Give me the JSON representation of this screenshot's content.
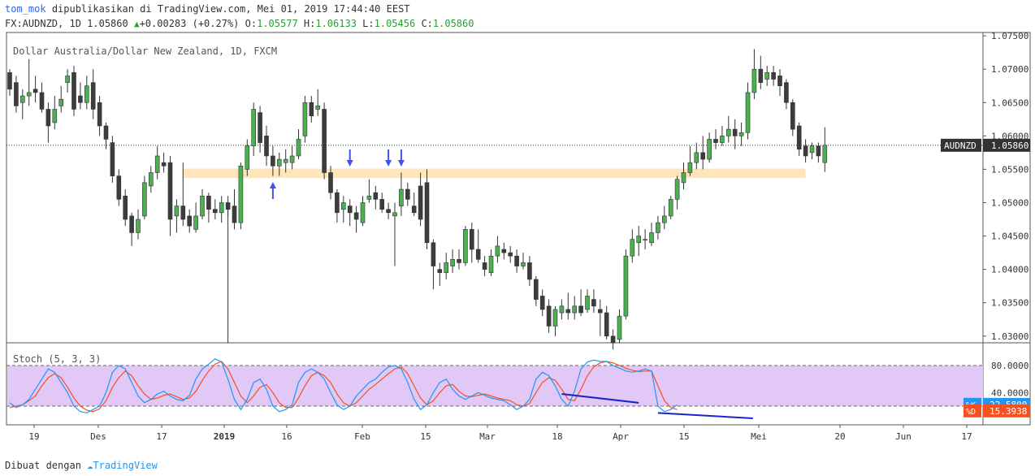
{
  "header": {
    "user": "tom_mok",
    "published_text": "dipublikasikan di TradingView.com, Mei 01, 2019 17:44:40 EEST",
    "symbol_text": "FX:AUDNZD, 1D 1.05860",
    "change_arrow": "▲",
    "change_text": "+0.00283 (+0.27%)",
    "o_label": "O:",
    "o_value": "1.05577",
    "h_label": "H:",
    "h_value": "1.06133",
    "l_label": "L:",
    "l_value": "1.05456",
    "c_label": "C:",
    "c_value": "1.05860"
  },
  "footer": {
    "made_with": "Dibuat dengan",
    "brand": "TradingView"
  },
  "colors": {
    "up": "#4caf50",
    "down": "#3c3c3c",
    "zone": "#fde6bd",
    "arrow": "#3f51f5",
    "stoch_band": "#e1c8f7",
    "k_line": "#2196f3",
    "d_line": "#f4511e",
    "trendline": "#1a23c9"
  },
  "chart_data": {
    "type": "candlestick",
    "title": "Dollar Australia/Dollar New Zealand, 1D, FXCM",
    "symbol_label": "AUDNZD",
    "last_price": "1.05860",
    "ylim": [
      1.029,
      1.0755
    ],
    "price_ticks": [
      "1.07500",
      "1.07000",
      "1.06500",
      "1.06000",
      "1.05500",
      "1.05000",
      "1.04500",
      "1.04000",
      "1.03500",
      "1.03000"
    ],
    "x_ticks": [
      "19",
      "Des",
      "17",
      "2019",
      "16",
      "Feb",
      "15",
      "Mar",
      "18",
      "Apr",
      "15",
      "Mei",
      "20",
      "Jun",
      "17"
    ],
    "support_zone": [
      1.0537,
      1.0551
    ],
    "candles": [
      [
        1.0695,
        1.067,
        1.07,
        1.066
      ],
      [
        1.068,
        1.0645,
        1.069,
        1.0635
      ],
      [
        1.065,
        1.066,
        1.067,
        1.0625
      ],
      [
        1.066,
        1.0665,
        1.0715,
        1.0645
      ],
      [
        1.067,
        1.0665,
        1.069,
        1.065
      ],
      [
        1.0665,
        1.064,
        1.068,
        1.0635
      ],
      [
        1.064,
        1.0615,
        1.065,
        1.059
      ],
      [
        1.062,
        1.064,
        1.066,
        1.061
      ],
      [
        1.0645,
        1.0655,
        1.0675,
        1.0635
      ],
      [
        1.068,
        1.069,
        1.07,
        1.0665
      ],
      [
        1.0695,
        1.064,
        1.0705,
        1.063
      ],
      [
        1.066,
        1.065,
        1.068,
        1.064
      ],
      [
        1.065,
        1.0675,
        1.069,
        1.064
      ],
      [
        1.068,
        1.064,
        1.07,
        1.0625
      ],
      [
        1.065,
        1.0615,
        1.066,
        1.06
      ],
      [
        1.0615,
        1.0595,
        1.062,
        1.058
      ],
      [
        1.059,
        1.054,
        1.06,
        1.053
      ],
      [
        1.054,
        1.0505,
        1.055,
        1.0495
      ],
      [
        1.051,
        1.0475,
        1.052,
        1.0465
      ],
      [
        1.048,
        1.0455,
        1.0485,
        1.0435
      ],
      [
        1.0455,
        1.0475,
        1.049,
        1.0445
      ],
      [
        1.048,
        1.053,
        1.054,
        1.0475
      ],
      [
        1.0525,
        1.0545,
        1.0555,
        1.0515
      ],
      [
        1.0545,
        1.057,
        1.0585,
        1.0535
      ],
      [
        1.056,
        1.0555,
        1.0575,
        1.0545
      ],
      [
        1.056,
        1.0475,
        1.057,
        1.045
      ],
      [
        1.048,
        1.0495,
        1.0505,
        1.0455
      ],
      [
        1.0495,
        1.0475,
        1.056,
        1.0465
      ],
      [
        1.048,
        1.0465,
        1.049,
        1.0455
      ],
      [
        1.046,
        1.048,
        1.05,
        1.0455
      ],
      [
        1.048,
        1.051,
        1.052,
        1.0475
      ],
      [
        1.051,
        1.049,
        1.0515,
        1.047
      ],
      [
        1.049,
        1.0485,
        1.0505,
        1.0475
      ],
      [
        1.0485,
        1.05,
        1.051,
        1.047
      ],
      [
        1.05,
        1.049,
        1.051,
        1.048
      ],
      [
        1.0495,
        1.047,
        1.052,
        1.046
      ],
      [
        1.047,
        1.0555,
        1.056,
        1.046
      ],
      [
        1.055,
        1.0585,
        1.0595,
        1.054
      ],
      [
        1.0585,
        1.064,
        1.065,
        1.057
      ],
      [
        1.0635,
        1.059,
        1.0645,
        1.0575
      ],
      [
        1.06,
        1.057,
        1.0615,
        1.0555
      ],
      [
        1.057,
        1.0555,
        1.0585,
        1.054
      ],
      [
        1.0555,
        1.0565,
        1.0575,
        1.054
      ],
      [
        1.056,
        1.0565,
        1.058,
        1.0545
      ],
      [
        1.056,
        1.057,
        1.0585,
        1.055
      ],
      [
        1.057,
        1.0595,
        1.061,
        1.0565
      ],
      [
        1.06,
        1.065,
        1.066,
        1.059
      ],
      [
        1.065,
        1.063,
        1.066,
        1.062
      ],
      [
        1.064,
        1.0645,
        1.067,
        1.063
      ],
      [
        1.064,
        1.0545,
        1.065,
        1.0535
      ],
      [
        1.0545,
        1.0515,
        1.0555,
        1.0505
      ],
      [
        1.0515,
        1.0485,
        1.052,
        1.047
      ],
      [
        1.049,
        1.05,
        1.051,
        1.047
      ],
      [
        1.0495,
        1.0485,
        1.0505,
        1.0465
      ],
      [
        1.0485,
        1.0475,
        1.0495,
        1.0455
      ],
      [
        1.047,
        1.05,
        1.051,
        1.0465
      ],
      [
        1.0505,
        1.051,
        1.0535,
        1.05
      ],
      [
        1.0515,
        1.0505,
        1.0525,
        1.049
      ],
      [
        1.0505,
        1.049,
        1.0515,
        1.0485
      ],
      [
        1.049,
        1.0485,
        1.05,
        1.0475
      ],
      [
        1.048,
        1.0485,
        1.05,
        1.0405
      ],
      [
        1.0495,
        1.052,
        1.0545,
        1.048
      ],
      [
        1.052,
        1.0505,
        1.053,
        1.0495
      ],
      [
        1.0495,
        1.0485,
        1.0515,
        1.048
      ],
      [
        1.0525,
        1.0475,
        1.0545,
        1.0465
      ],
      [
        1.053,
        1.044,
        1.055,
        1.043
      ],
      [
        1.044,
        1.0405,
        1.0445,
        1.037
      ],
      [
        1.04,
        1.0395,
        1.041,
        1.0375
      ],
      [
        1.0395,
        1.041,
        1.0425,
        1.0385
      ],
      [
        1.0405,
        1.0415,
        1.043,
        1.0395
      ],
      [
        1.0415,
        1.041,
        1.043,
        1.04
      ],
      [
        1.041,
        1.046,
        1.0465,
        1.0405
      ],
      [
        1.046,
        1.043,
        1.047,
        1.041
      ],
      [
        1.043,
        1.0415,
        1.046,
        1.041
      ],
      [
        1.041,
        1.04,
        1.042,
        1.039
      ],
      [
        1.0395,
        1.042,
        1.043,
        1.039
      ],
      [
        1.042,
        1.0435,
        1.045,
        1.041
      ],
      [
        1.043,
        1.0425,
        1.044,
        1.0415
      ],
      [
        1.0425,
        1.042,
        1.0435,
        1.041
      ],
      [
        1.042,
        1.0405,
        1.043,
        1.0395
      ],
      [
        1.0405,
        1.041,
        1.0425,
        1.04
      ],
      [
        1.041,
        1.0385,
        1.042,
        1.0375
      ],
      [
        1.0385,
        1.0355,
        1.039,
        1.0345
      ],
      [
        1.036,
        1.034,
        1.037,
        1.033
      ],
      [
        1.0345,
        1.0315,
        1.0355,
        1.0305
      ],
      [
        1.0315,
        1.034,
        1.0345,
        1.03
      ],
      [
        1.0335,
        1.0345,
        1.0355,
        1.0325
      ],
      [
        1.034,
        1.0335,
        1.0365,
        1.0325
      ],
      [
        1.0335,
        1.0345,
        1.036,
        1.0325
      ],
      [
        1.0345,
        1.0335,
        1.037,
        1.033
      ],
      [
        1.034,
        1.036,
        1.037,
        1.0335
      ],
      [
        1.0355,
        1.0345,
        1.037,
        1.0335
      ],
      [
        1.034,
        1.0335,
        1.0355,
        1.03
      ],
      [
        1.0335,
        1.03,
        1.0345,
        1.0295
      ],
      [
        1.03,
        1.029,
        1.031,
        1.028
      ],
      [
        1.0295,
        1.033,
        1.034,
        1.029
      ],
      [
        1.033,
        1.042,
        1.043,
        1.0325
      ],
      [
        1.042,
        1.0445,
        1.046,
        1.041
      ],
      [
        1.044,
        1.045,
        1.0465,
        1.042
      ],
      [
        1.0445,
        1.0445,
        1.046,
        1.043
      ],
      [
        1.044,
        1.0455,
        1.047,
        1.0435
      ],
      [
        1.0455,
        1.047,
        1.048,
        1.0445
      ],
      [
        1.047,
        1.048,
        1.0495,
        1.046
      ],
      [
        1.048,
        1.0505,
        1.051,
        1.0475
      ],
      [
        1.0505,
        1.0535,
        1.054,
        1.049
      ],
      [
        1.053,
        1.0545,
        1.056,
        1.052
      ],
      [
        1.0545,
        1.056,
        1.0585,
        1.054
      ],
      [
        1.056,
        1.0575,
        1.059,
        1.055
      ],
      [
        1.0575,
        1.0565,
        1.06,
        1.055
      ],
      [
        1.0565,
        1.0595,
        1.0605,
        1.056
      ],
      [
        1.0595,
        1.059,
        1.061,
        1.058
      ],
      [
        1.059,
        1.06,
        1.0615,
        1.0585
      ],
      [
        1.06,
        1.061,
        1.063,
        1.059
      ],
      [
        1.061,
        1.06,
        1.0625,
        1.058
      ],
      [
        1.06,
        1.0605,
        1.062,
        1.0585
      ],
      [
        1.0605,
        1.0665,
        1.068,
        1.0595
      ],
      [
        1.0665,
        1.07,
        1.073,
        1.0655
      ],
      [
        1.07,
        1.068,
        1.072,
        1.067
      ],
      [
        1.0685,
        1.0695,
        1.0705,
        1.0675
      ],
      [
        1.0695,
        1.0685,
        1.0705,
        1.0675
      ],
      [
        1.069,
        1.0675,
        1.07,
        1.066
      ],
      [
        1.068,
        1.065,
        1.0685,
        1.064
      ],
      [
        1.065,
        1.061,
        1.0655,
        1.06
      ],
      [
        1.0615,
        1.058,
        1.062,
        1.057
      ],
      [
        1.0585,
        1.057,
        1.0595,
        1.056
      ],
      [
        1.0575,
        1.0585,
        1.059,
        1.0565
      ],
      [
        1.0585,
        1.057,
        1.059,
        1.056
      ],
      [
        1.056,
        1.0586,
        1.0613,
        1.0546
      ]
    ],
    "arrows": [
      {
        "index": 41,
        "dir": "up"
      },
      {
        "index": 53,
        "dir": "down"
      },
      {
        "index": 59,
        "dir": "down"
      },
      {
        "index": 61,
        "dir": "down"
      }
    ],
    "stochastic": {
      "label": "Stoch (5, 3, 3)",
      "ylim": [
        0,
        100
      ],
      "levels": [
        20,
        80
      ],
      "level_labels": [
        "80.0000",
        "40.0000"
      ],
      "k_name": "%K",
      "k_value": "22.5800",
      "d_name": "%D",
      "d_value": "15.3938",
      "k": [
        25,
        18,
        22,
        30,
        45,
        60,
        75,
        70,
        55,
        40,
        20,
        12,
        10,
        15,
        20,
        40,
        70,
        80,
        75,
        55,
        35,
        25,
        30,
        38,
        42,
        35,
        30,
        28,
        36,
        60,
        75,
        82,
        90,
        85,
        60,
        30,
        15,
        30,
        55,
        60,
        45,
        20,
        12,
        15,
        22,
        55,
        70,
        75,
        70,
        60,
        40,
        22,
        15,
        20,
        35,
        45,
        55,
        60,
        70,
        78,
        80,
        75,
        55,
        30,
        15,
        22,
        40,
        55,
        60,
        45,
        35,
        30,
        35,
        40,
        36,
        32,
        30,
        28,
        22,
        15,
        20,
        30,
        60,
        70,
        65,
        50,
        30,
        20,
        42,
        75,
        85,
        88,
        86,
        86,
        80,
        76,
        72,
        70,
        72,
        75,
        72,
        20,
        12,
        15,
        22
      ],
      "d": [
        18,
        20,
        22,
        28,
        35,
        50,
        62,
        68,
        62,
        48,
        32,
        20,
        14,
        12,
        16,
        28,
        48,
        62,
        72,
        65,
        50,
        38,
        30,
        32,
        36,
        38,
        34,
        30,
        32,
        42,
        58,
        72,
        82,
        86,
        75,
        55,
        35,
        25,
        35,
        48,
        52,
        40,
        25,
        18,
        18,
        32,
        50,
        65,
        70,
        65,
        55,
        38,
        25,
        20,
        25,
        35,
        45,
        52,
        60,
        68,
        75,
        78,
        68,
        50,
        32,
        22,
        28,
        40,
        50,
        52,
        42,
        35,
        34,
        36,
        38,
        35,
        32,
        30,
        28,
        22,
        20,
        24,
        40,
        55,
        62,
        58,
        45,
        30,
        28,
        45,
        65,
        78,
        84,
        86,
        84,
        80,
        76,
        73,
        71,
        72,
        72,
        50,
        28,
        18,
        15
      ]
    },
    "trendlines": [
      {
        "from_index": 86,
        "from_k": 38,
        "to_index": 98,
        "to_k": 25
      },
      {
        "from_index": 101,
        "from_k": 10,
        "to_index": 112,
        "to_k": 2
      }
    ]
  }
}
